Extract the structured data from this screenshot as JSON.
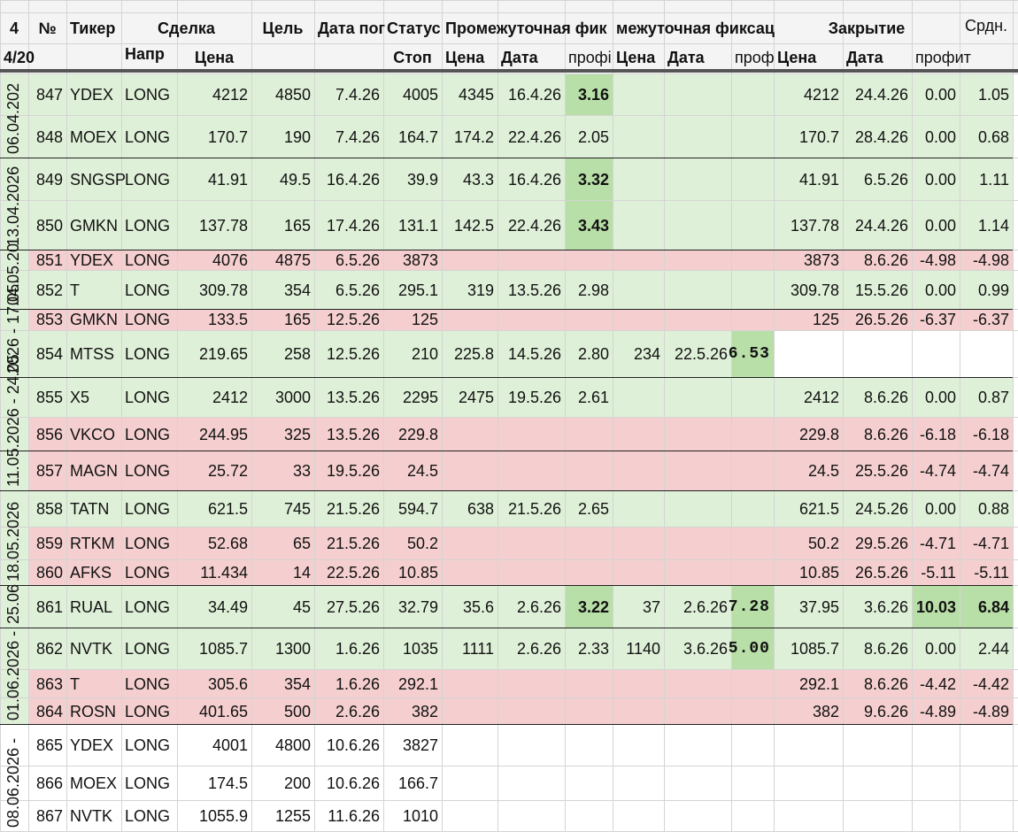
{
  "colors": {
    "green": "#dff0d8",
    "red": "#f5cfcf",
    "dark_green": "#b9dfa8",
    "grid": "#d4d4d4"
  },
  "header": {
    "row1": {
      "col_a": "4",
      "num": "№",
      "ticker": "Тикер",
      "deal": "Сделка",
      "target": "Цель",
      "date": "Дата пог",
      "status": "Статус",
      "inter1": "Промежуточная фик",
      "inter2": "межуточная фиксац",
      "close": "Закрытие",
      "avg": "Срдн."
    },
    "row2": {
      "col_a": "4/20",
      "dir": "Напр",
      "price": "Цена",
      "stop": "Стоп",
      "i1_price": "Цена",
      "i1_date": "Дата",
      "i1_profit": "профі",
      "i2_price": "Цена",
      "i2_date": "Дата",
      "i2_profit": "проф",
      "c_price": "Цена",
      "c_date": "Дата",
      "c_profit": "профит"
    }
  },
  "week_labels": [
    "06.04.202",
    "13.04.2026",
    "04.05.20",
    "2026 - 17.05.",
    "11.05.2026 - 24.05",
    "18.05.2026",
    "25.06",
    "01.06.2026 -",
    "08.06.2026 -"
  ],
  "rows": [
    {
      "no": "847",
      "ticker": "YDEX",
      "dir": "LONG",
      "price": "4212",
      "target": "4850",
      "date": "7.4.26",
      "stop": "4005",
      "i1p": "4345",
      "i1d": "16.4.26",
      "i1pr": "3.16",
      "i2p": "",
      "i2d": "",
      "i2pr": "",
      "cp": "4212",
      "cd": "24.4.26",
      "cpr": "0.00",
      "avg": "1.05"
    },
    {
      "no": "848",
      "ticker": "MOEX",
      "dir": "LONG",
      "price": "170.7",
      "target": "190",
      "date": "7.4.26",
      "stop": "164.7",
      "i1p": "174.2",
      "i1d": "22.4.26",
      "i1pr": "2.05",
      "i2p": "",
      "i2d": "",
      "i2pr": "",
      "cp": "170.7",
      "cd": "28.4.26",
      "cpr": "0.00",
      "avg": "0.68"
    },
    {
      "no": "849",
      "ticker": "SNGSP",
      "dir": "LONG",
      "price": "41.91",
      "target": "49.5",
      "date": "16.4.26",
      "stop": "39.9",
      "i1p": "43.3",
      "i1d": "16.4.26",
      "i1pr": "3.32",
      "i2p": "",
      "i2d": "",
      "i2pr": "",
      "cp": "41.91",
      "cd": "6.5.26",
      "cpr": "0.00",
      "avg": "1.11"
    },
    {
      "no": "850",
      "ticker": "GMKN",
      "dir": "LONG",
      "price": "137.78",
      "target": "165",
      "date": "17.4.26",
      "stop": "131.1",
      "i1p": "142.5",
      "i1d": "22.4.26",
      "i1pr": "3.43",
      "i2p": "",
      "i2d": "",
      "i2pr": "",
      "cp": "137.78",
      "cd": "24.4.26",
      "cpr": "0.00",
      "avg": "1.14"
    },
    {
      "no": "851",
      "ticker": "YDEX",
      "dir": "LONG",
      "price": "4076",
      "target": "4875",
      "date": "6.5.26",
      "stop": "3873",
      "i1p": "",
      "i1d": "",
      "i1pr": "",
      "i2p": "",
      "i2d": "",
      "i2pr": "",
      "cp": "3873",
      "cd": "8.6.26",
      "cpr": "-4.98",
      "avg": "-4.98"
    },
    {
      "no": "852",
      "ticker": "T",
      "dir": "LONG",
      "price": "309.78",
      "target": "354",
      "date": "6.5.26",
      "stop": "295.1",
      "i1p": "319",
      "i1d": "13.5.26",
      "i1pr": "2.98",
      "i2p": "",
      "i2d": "",
      "i2pr": "",
      "cp": "309.78",
      "cd": "15.5.26",
      "cpr": "0.00",
      "avg": "0.99"
    },
    {
      "no": "853",
      "ticker": "GMKN",
      "dir": "LONG",
      "price": "133.5",
      "target": "165",
      "date": "12.5.26",
      "stop": "125",
      "i1p": "",
      "i1d": "",
      "i1pr": "",
      "i2p": "",
      "i2d": "",
      "i2pr": "",
      "cp": "125",
      "cd": "26.5.26",
      "cpr": "-6.37",
      "avg": "-6.37"
    },
    {
      "no": "854",
      "ticker": "MTSS",
      "dir": "LONG",
      "price": "219.65",
      "target": "258",
      "date": "12.5.26",
      "stop": "210",
      "i1p": "225.8",
      "i1d": "14.5.26",
      "i1pr": "2.80",
      "i2p": "234",
      "i2d": "22.5.26",
      "i2pr": "6.53",
      "cp": "",
      "cd": "",
      "cpr": "",
      "avg": ""
    },
    {
      "no": "855",
      "ticker": "X5",
      "dir": "LONG",
      "price": "2412",
      "target": "3000",
      "date": "13.5.26",
      "stop": "2295",
      "i1p": "2475",
      "i1d": "19.5.26",
      "i1pr": "2.61",
      "i2p": "",
      "i2d": "",
      "i2pr": "",
      "cp": "2412",
      "cd": "8.6.26",
      "cpr": "0.00",
      "avg": "0.87"
    },
    {
      "no": "856",
      "ticker": "VKCO",
      "dir": "LONG",
      "price": "244.95",
      "target": "325",
      "date": "13.5.26",
      "stop": "229.8",
      "i1p": "",
      "i1d": "",
      "i1pr": "",
      "i2p": "",
      "i2d": "",
      "i2pr": "",
      "cp": "229.8",
      "cd": "8.6.26",
      "cpr": "-6.18",
      "avg": "-6.18"
    },
    {
      "no": "857",
      "ticker": "MAGN",
      "dir": "LONG",
      "price": "25.72",
      "target": "33",
      "date": "19.5.26",
      "stop": "24.5",
      "i1p": "",
      "i1d": "",
      "i1pr": "",
      "i2p": "",
      "i2d": "",
      "i2pr": "",
      "cp": "24.5",
      "cd": "25.5.26",
      "cpr": "-4.74",
      "avg": "-4.74"
    },
    {
      "no": "858",
      "ticker": "TATN",
      "dir": "LONG",
      "price": "621.5",
      "target": "745",
      "date": "21.5.26",
      "stop": "594.7",
      "i1p": "638",
      "i1d": "21.5.26",
      "i1pr": "2.65",
      "i2p": "",
      "i2d": "",
      "i2pr": "",
      "cp": "621.5",
      "cd": "24.5.26",
      "cpr": "0.00",
      "avg": "0.88"
    },
    {
      "no": "859",
      "ticker": "RTKM",
      "dir": "LONG",
      "price": "52.68",
      "target": "65",
      "date": "21.5.26",
      "stop": "50.2",
      "i1p": "",
      "i1d": "",
      "i1pr": "",
      "i2p": "",
      "i2d": "",
      "i2pr": "",
      "cp": "50.2",
      "cd": "29.5.26",
      "cpr": "-4.71",
      "avg": "-4.71"
    },
    {
      "no": "860",
      "ticker": "AFKS",
      "dir": "LONG",
      "price": "11.434",
      "target": "14",
      "date": "22.5.26",
      "stop": "10.85",
      "i1p": "",
      "i1d": "",
      "i1pr": "",
      "i2p": "",
      "i2d": "",
      "i2pr": "",
      "cp": "10.85",
      "cd": "26.5.26",
      "cpr": "-5.11",
      "avg": "-5.11"
    },
    {
      "no": "861",
      "ticker": "RUAL",
      "dir": "LONG",
      "price": "34.49",
      "target": "45",
      "date": "27.5.26",
      "stop": "32.79",
      "i1p": "35.6",
      "i1d": "2.6.26",
      "i1pr": "3.22",
      "i2p": "37",
      "i2d": "2.6.26",
      "i2pr": "7.28",
      "cp": "37.95",
      "cd": "3.6.26",
      "cpr": "10.03",
      "avg": "6.84"
    },
    {
      "no": "862",
      "ticker": "NVTK",
      "dir": "LONG",
      "price": "1085.7",
      "target": "1300",
      "date": "1.6.26",
      "stop": "1035",
      "i1p": "1111",
      "i1d": "2.6.26",
      "i1pr": "2.33",
      "i2p": "1140",
      "i2d": "3.6.26",
      "i2pr": "5.00",
      "cp": "1085.7",
      "cd": "8.6.26",
      "cpr": "0.00",
      "avg": "2.44"
    },
    {
      "no": "863",
      "ticker": "T",
      "dir": "LONG",
      "price": "305.6",
      "target": "354",
      "date": "1.6.26",
      "stop": "292.1",
      "i1p": "",
      "i1d": "",
      "i1pr": "",
      "i2p": "",
      "i2d": "",
      "i2pr": "",
      "cp": "292.1",
      "cd": "8.6.26",
      "cpr": "-4.42",
      "avg": "-4.42"
    },
    {
      "no": "864",
      "ticker": "ROSN",
      "dir": "LONG",
      "price": "401.65",
      "target": "500",
      "date": "2.6.26",
      "stop": "382",
      "i1p": "",
      "i1d": "",
      "i1pr": "",
      "i2p": "",
      "i2d": "",
      "i2pr": "",
      "cp": "382",
      "cd": "9.6.26",
      "cpr": "-4.89",
      "avg": "-4.89"
    },
    {
      "no": "865",
      "ticker": "YDEX",
      "dir": "LONG",
      "price": "4001",
      "target": "4800",
      "date": "10.6.26",
      "stop": "3827",
      "i1p": "",
      "i1d": "",
      "i1pr": "",
      "i2p": "",
      "i2d": "",
      "i2pr": "",
      "cp": "",
      "cd": "",
      "cpr": "",
      "avg": ""
    },
    {
      "no": "866",
      "ticker": "MOEX",
      "dir": "LONG",
      "price": "174.5",
      "target": "200",
      "date": "10.6.26",
      "stop": "166.7",
      "i1p": "",
      "i1d": "",
      "i1pr": "",
      "i2p": "",
      "i2d": "",
      "i2pr": "",
      "cp": "",
      "cd": "",
      "cpr": "",
      "avg": ""
    },
    {
      "no": "867",
      "ticker": "NVTK",
      "dir": "LONG",
      "price": "1055.9",
      "target": "1255",
      "date": "11.6.26",
      "stop": "1010",
      "i1p": "",
      "i1d": "",
      "i1pr": "",
      "i2p": "",
      "i2d": "",
      "i2pr": "",
      "cp": "",
      "cd": "",
      "cpr": "",
      "avg": ""
    }
  ]
}
